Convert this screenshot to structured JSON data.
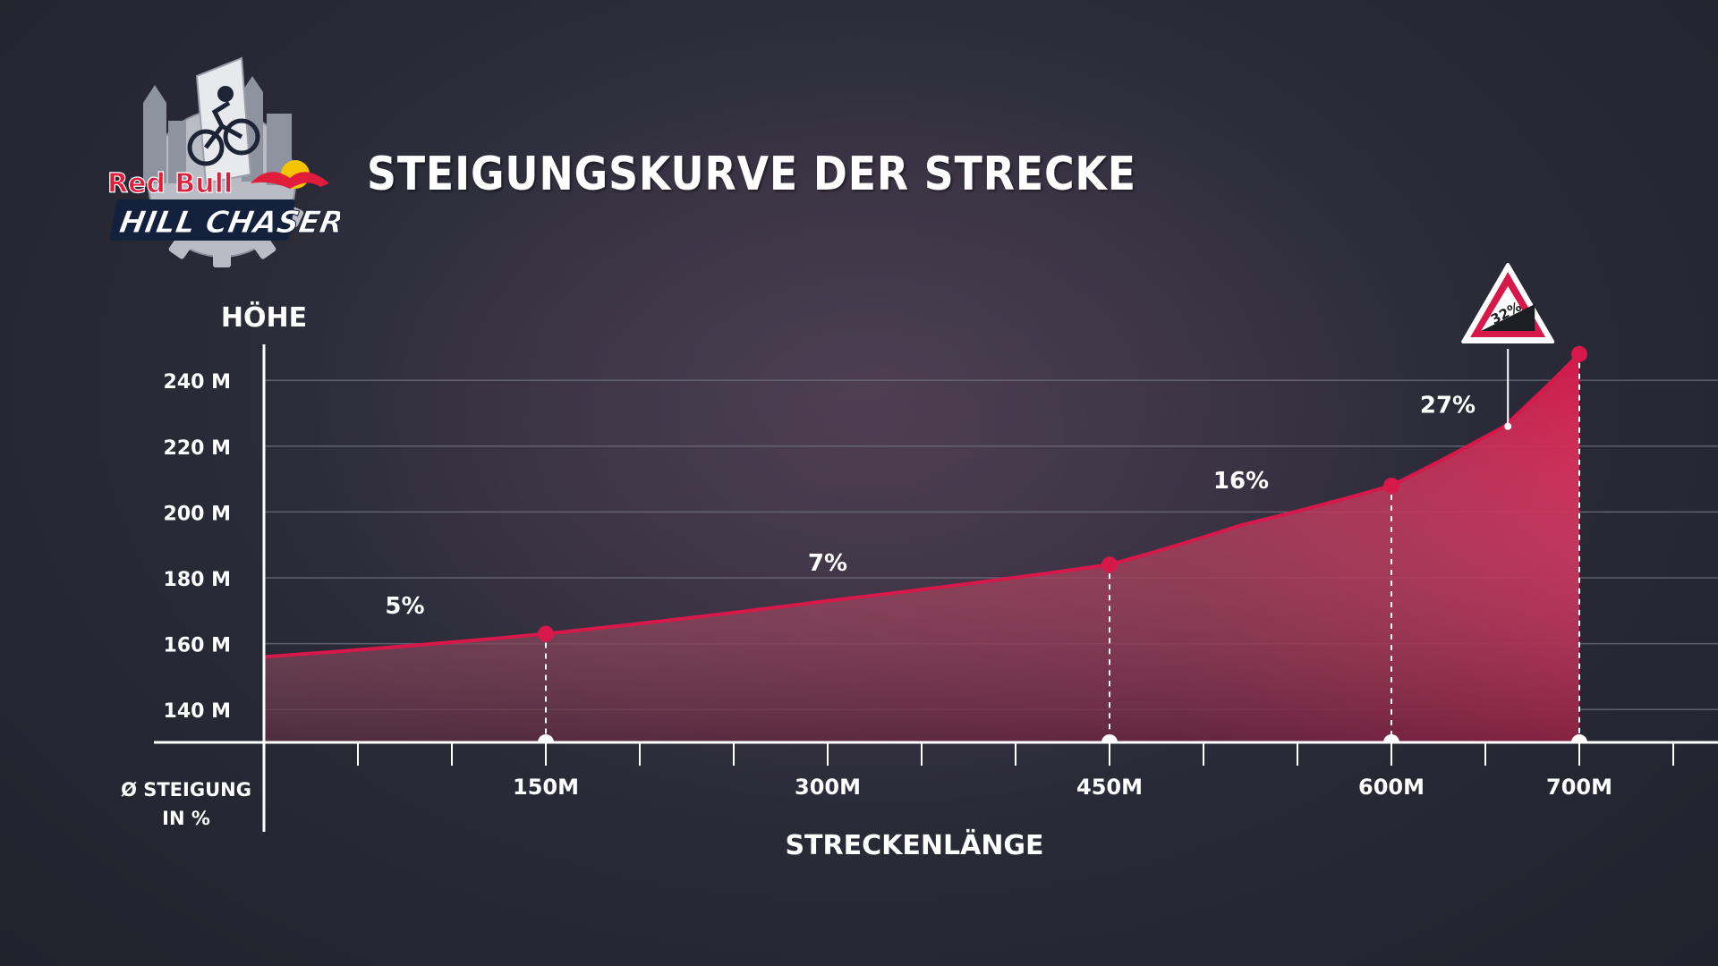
{
  "title": "STEIGUNGSKURVE DER STRECKE",
  "logo": {
    "brand": "Red Bull",
    "event": "HILL CHASERS"
  },
  "sign": {
    "text": "32%"
  },
  "colors": {
    "curve": "#d6194a",
    "text": "#ffffff",
    "grid": "#6e6e7c",
    "background": "#2c2c3a"
  },
  "chart_data": {
    "type": "area",
    "ylabel": "HÖHE",
    "xlabel": "STRECKENLÄNGE",
    "row_label": [
      "Ø STEIGUNG",
      "IN %"
    ],
    "y_ticks": [
      "140 M",
      "160 M",
      "180 M",
      "200 M",
      "220 M",
      "240 M"
    ],
    "y_tick_values": [
      140,
      160,
      180,
      200,
      220,
      240
    ],
    "ylim": [
      130,
      255
    ],
    "xlim": [
      0,
      770
    ],
    "x_ticks": [
      "150M",
      "300M",
      "450M",
      "600M",
      "700M"
    ],
    "x_tick_values": [
      150,
      300,
      450,
      600,
      700
    ],
    "x_minor_ticks": [
      0,
      50,
      100,
      150,
      200,
      250,
      300,
      350,
      400,
      450,
      500,
      550,
      600,
      650,
      700,
      750
    ],
    "series": [
      {
        "points": [
          {
            "x": 0,
            "y": 156
          },
          {
            "x": 150,
            "y": 163
          },
          {
            "x": 300,
            "y": 173
          },
          {
            "x": 450,
            "y": 184
          },
          {
            "x": 520,
            "y": 196
          },
          {
            "x": 600,
            "y": 208
          },
          {
            "x": 660,
            "y": 226
          },
          {
            "x": 700,
            "y": 248
          }
        ],
        "markers": [
          150,
          450,
          600,
          700
        ]
      }
    ],
    "segment_labels": [
      {
        "text": "5%",
        "x": 75,
        "y": 167
      },
      {
        "text": "7%",
        "x": 300,
        "y": 180
      },
      {
        "text": "16%",
        "x": 520,
        "y": 205
      },
      {
        "text": "27%",
        "x": 630,
        "y": 228
      }
    ],
    "sign_at": {
      "x": 662,
      "y": 226
    },
    "grid": true
  }
}
